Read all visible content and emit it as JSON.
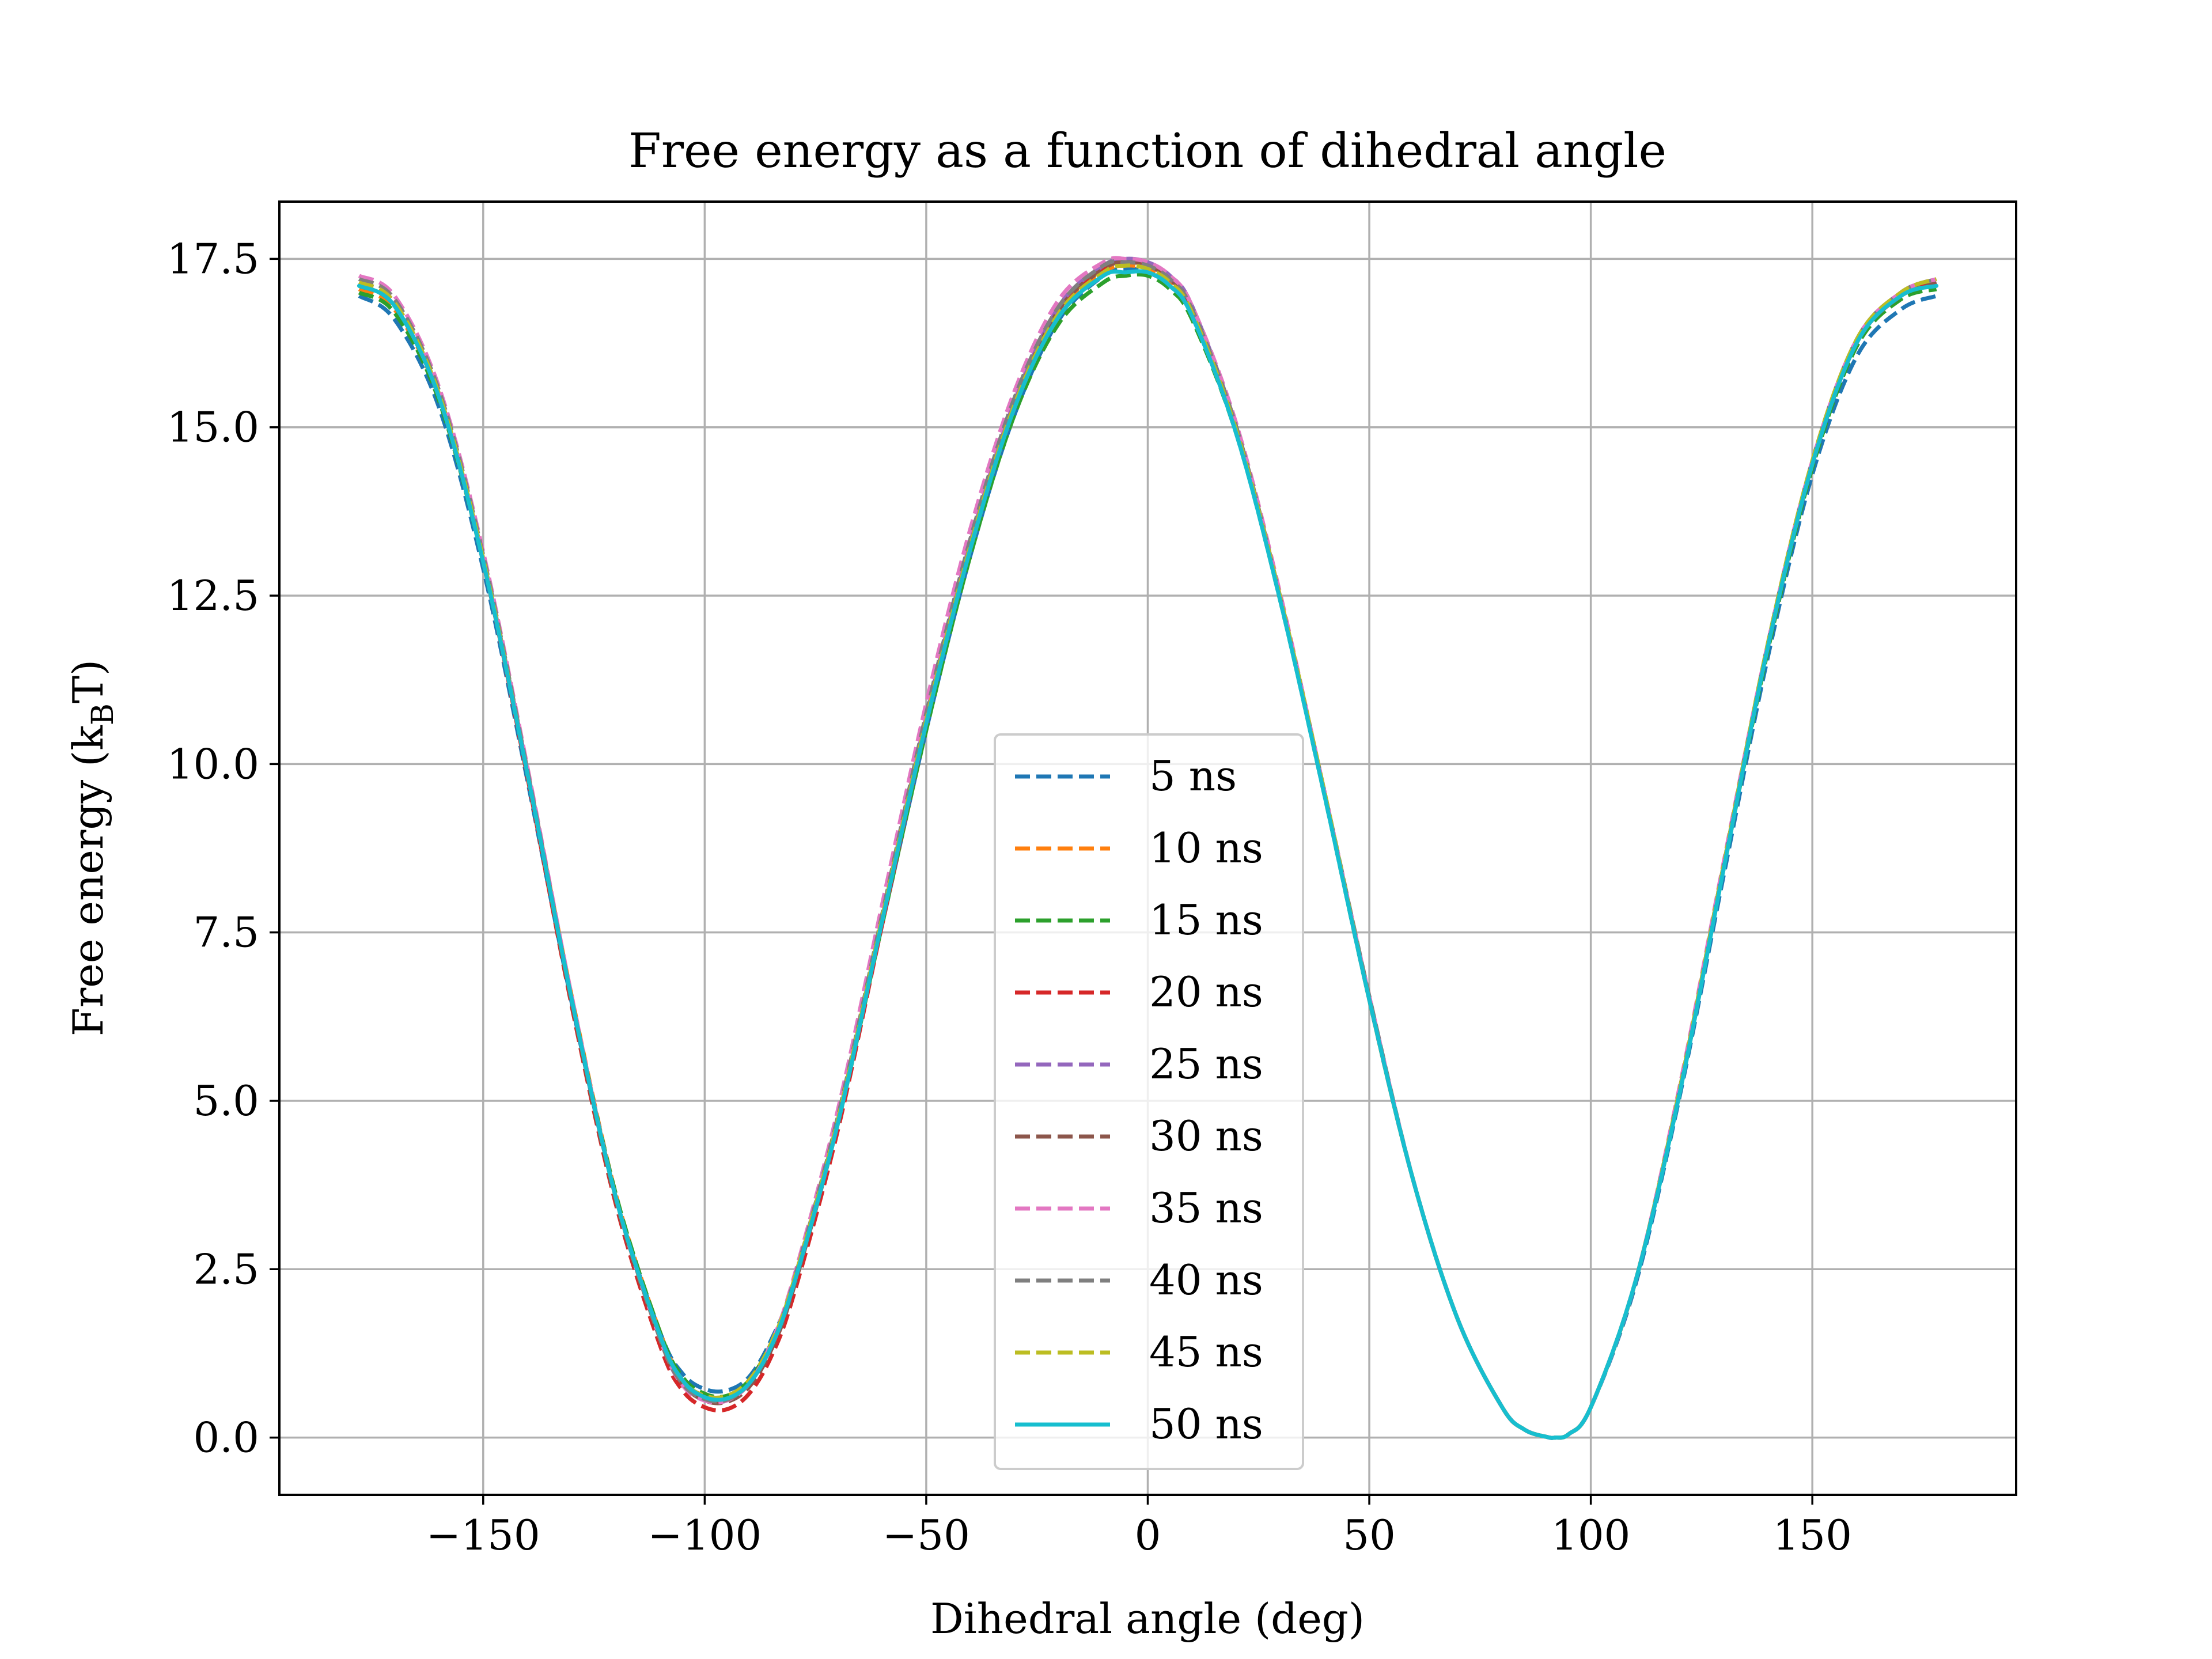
{
  "chart_data": {
    "type": "line",
    "title": "Free energy as a function of dihedral angle",
    "xlabel": "Dihedral angle (deg)",
    "ylabel_main": "Free energy (k",
    "ylabel_sub": "B",
    "ylabel_end": "T)",
    "xlim": [
      -196,
      196
    ],
    "ylim": [
      -0.85,
      18.35
    ],
    "xticks": [
      -150,
      -100,
      -50,
      0,
      50,
      100,
      150
    ],
    "xtick_labels": [
      "−150",
      "−100",
      "−50",
      "0",
      "50",
      "100",
      "150"
    ],
    "yticks": [
      0.0,
      2.5,
      5.0,
      7.5,
      10.0,
      12.5,
      15.0,
      17.5
    ],
    "ytick_labels": [
      "0.0",
      "2.5",
      "5.0",
      "7.5",
      "10.0",
      "12.5",
      "15.0",
      "17.5"
    ],
    "grid": true,
    "legend_position": "lower-center",
    "x": [
      -178,
      -170,
      -160,
      -150,
      -140,
      -130,
      -120,
      -110,
      -105,
      -100,
      -95,
      -90,
      -85,
      -80,
      -70,
      -60,
      -50,
      -40,
      -30,
      -20,
      -10,
      -5,
      0,
      5,
      10,
      20,
      30,
      40,
      50,
      60,
      70,
      80,
      85,
      90,
      92,
      95,
      100,
      110,
      120,
      130,
      140,
      150,
      160,
      170,
      178
    ],
    "series": [
      {
        "name": "5 ns",
        "color": "#1f77b4",
        "dashed": true,
        "values": [
          16.95,
          16.6,
          15.3,
          12.9,
          9.75,
          6.45,
          3.55,
          1.55,
          0.95,
          0.72,
          0.7,
          0.9,
          1.45,
          2.3,
          4.7,
          7.6,
          10.5,
          13.1,
          15.2,
          16.6,
          17.25,
          17.35,
          17.3,
          17.1,
          16.65,
          14.9,
          12.4,
          9.5,
          6.5,
          3.8,
          1.75,
          0.45,
          0.12,
          0.01,
          0.0,
          0.05,
          0.45,
          2.25,
          5.05,
          8.35,
          11.6,
          14.3,
          16.05,
          16.75,
          16.95
        ]
      },
      {
        "name": "10 ns",
        "color": "#ff7f0e",
        "dashed": true,
        "values": [
          17.05,
          16.75,
          15.45,
          13.05,
          9.9,
          6.55,
          3.6,
          1.55,
          0.85,
          0.62,
          0.6,
          0.82,
          1.38,
          2.25,
          4.65,
          7.65,
          10.6,
          13.2,
          15.3,
          16.7,
          17.3,
          17.4,
          17.35,
          17.15,
          16.7,
          14.95,
          12.45,
          9.55,
          6.55,
          3.8,
          1.75,
          0.45,
          0.12,
          0.01,
          0.0,
          0.05,
          0.45,
          2.3,
          5.15,
          8.5,
          11.75,
          14.45,
          16.25,
          16.95,
          17.1
        ]
      },
      {
        "name": "15 ns",
        "color": "#2ca02c",
        "dashed": true,
        "values": [
          17.0,
          16.7,
          15.4,
          13.0,
          9.85,
          6.5,
          3.6,
          1.55,
          0.9,
          0.65,
          0.62,
          0.85,
          1.4,
          2.25,
          4.65,
          7.6,
          10.5,
          13.1,
          15.2,
          16.55,
          17.15,
          17.25,
          17.25,
          17.05,
          16.6,
          14.9,
          12.4,
          9.5,
          6.5,
          3.8,
          1.75,
          0.45,
          0.12,
          0.01,
          0.0,
          0.05,
          0.45,
          2.3,
          5.1,
          8.45,
          11.7,
          14.4,
          16.2,
          16.9,
          17.05
        ]
      },
      {
        "name": "20 ns",
        "color": "#d62728",
        "dashed": true,
        "values": [
          17.1,
          16.8,
          15.45,
          13.0,
          9.8,
          6.4,
          3.45,
          1.35,
          0.7,
          0.45,
          0.42,
          0.65,
          1.2,
          2.1,
          4.55,
          7.6,
          10.6,
          13.25,
          15.35,
          16.75,
          17.35,
          17.45,
          17.4,
          17.2,
          16.75,
          15.0,
          12.45,
          9.55,
          6.5,
          3.8,
          1.75,
          0.45,
          0.12,
          0.01,
          0.0,
          0.05,
          0.45,
          2.3,
          5.15,
          8.5,
          11.75,
          14.45,
          16.25,
          16.95,
          17.15
        ]
      },
      {
        "name": "25 ns",
        "color": "#9467bd",
        "dashed": true,
        "values": [
          17.15,
          16.85,
          15.5,
          13.05,
          9.9,
          6.5,
          3.55,
          1.5,
          0.85,
          0.6,
          0.58,
          0.8,
          1.35,
          2.25,
          4.7,
          7.7,
          10.7,
          13.3,
          15.4,
          16.8,
          17.4,
          17.5,
          17.45,
          17.25,
          16.8,
          15.0,
          12.45,
          9.55,
          6.55,
          3.8,
          1.75,
          0.45,
          0.12,
          0.01,
          0.0,
          0.05,
          0.45,
          2.3,
          5.15,
          8.5,
          11.8,
          14.5,
          16.3,
          17.0,
          17.2
        ]
      },
      {
        "name": "30 ns",
        "color": "#8c564b",
        "dashed": true,
        "values": [
          17.1,
          16.8,
          15.45,
          13.0,
          9.85,
          6.45,
          3.5,
          1.45,
          0.8,
          0.55,
          0.53,
          0.75,
          1.3,
          2.2,
          4.65,
          7.65,
          10.65,
          13.25,
          15.35,
          16.75,
          17.35,
          17.45,
          17.4,
          17.2,
          16.75,
          15.0,
          12.45,
          9.55,
          6.5,
          3.8,
          1.75,
          0.45,
          0.12,
          0.01,
          0.0,
          0.05,
          0.45,
          2.3,
          5.15,
          8.5,
          11.75,
          14.45,
          16.25,
          16.95,
          17.15
        ]
      },
      {
        "name": "35 ns",
        "color": "#e377c2",
        "dashed": true,
        "values": [
          17.25,
          16.95,
          15.6,
          13.15,
          9.95,
          6.55,
          3.55,
          1.45,
          0.78,
          0.55,
          0.55,
          0.8,
          1.4,
          2.35,
          4.85,
          7.9,
          10.9,
          13.5,
          15.55,
          16.9,
          17.45,
          17.5,
          17.45,
          17.25,
          16.8,
          15.05,
          12.5,
          9.55,
          6.55,
          3.8,
          1.75,
          0.45,
          0.12,
          0.01,
          0.0,
          0.05,
          0.45,
          2.3,
          5.2,
          8.55,
          11.8,
          14.5,
          16.3,
          17.0,
          17.2
        ]
      },
      {
        "name": "40 ns",
        "color": "#7f7f7f",
        "dashed": true,
        "values": [
          17.2,
          16.9,
          15.55,
          13.1,
          9.9,
          6.5,
          3.55,
          1.45,
          0.8,
          0.57,
          0.56,
          0.8,
          1.35,
          2.3,
          4.75,
          7.75,
          10.75,
          13.35,
          15.45,
          16.8,
          17.4,
          17.45,
          17.4,
          17.2,
          16.75,
          15.0,
          12.45,
          9.55,
          6.55,
          3.8,
          1.75,
          0.45,
          0.12,
          0.01,
          0.0,
          0.05,
          0.45,
          2.3,
          5.15,
          8.5,
          11.8,
          14.5,
          16.3,
          17.0,
          17.2
        ]
      },
      {
        "name": "45 ns",
        "color": "#bcbd22",
        "dashed": true,
        "values": [
          17.15,
          16.85,
          15.5,
          13.05,
          9.85,
          6.5,
          3.55,
          1.5,
          0.85,
          0.62,
          0.62,
          0.85,
          1.4,
          2.3,
          4.7,
          7.7,
          10.65,
          13.25,
          15.35,
          16.7,
          17.3,
          17.4,
          17.35,
          17.15,
          16.7,
          14.95,
          12.45,
          9.55,
          6.5,
          3.8,
          1.75,
          0.45,
          0.12,
          0.01,
          0.0,
          0.05,
          0.45,
          2.3,
          5.15,
          8.5,
          11.8,
          14.5,
          16.3,
          17.0,
          17.2
        ]
      },
      {
        "name": "50 ns",
        "color": "#17becf",
        "dashed": false,
        "values": [
          17.1,
          16.8,
          15.45,
          13.0,
          9.85,
          6.5,
          3.55,
          1.5,
          0.85,
          0.6,
          0.58,
          0.8,
          1.35,
          2.25,
          4.65,
          7.65,
          10.6,
          13.2,
          15.3,
          16.65,
          17.25,
          17.3,
          17.3,
          17.1,
          16.65,
          14.9,
          12.4,
          9.5,
          6.5,
          3.8,
          1.75,
          0.45,
          0.12,
          0.01,
          0.0,
          0.05,
          0.45,
          2.3,
          5.1,
          8.45,
          11.75,
          14.45,
          16.25,
          16.95,
          17.1
        ]
      }
    ]
  }
}
